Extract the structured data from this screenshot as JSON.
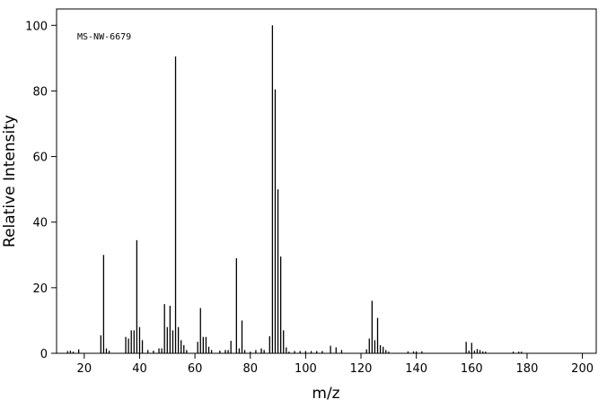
{
  "chart_data": {
    "type": "stem",
    "annotation": "MS-NW-6679",
    "x_label": "m/z",
    "y_label": "Relative Intensity",
    "x": [
      14,
      15,
      16,
      18,
      26,
      27,
      28,
      29,
      35,
      36,
      37,
      38,
      39,
      40,
      41,
      43,
      45,
      47,
      48,
      49,
      50,
      51,
      52,
      53,
      54,
      55,
      56,
      57,
      61,
      62,
      63,
      64,
      65,
      66,
      69,
      71,
      72,
      73,
      75,
      76,
      77,
      78,
      80,
      82,
      84,
      85,
      87,
      88,
      89,
      90,
      91,
      92,
      93,
      94,
      96,
      98,
      100,
      102,
      104,
      106,
      109,
      111,
      113,
      122,
      123,
      124,
      125,
      126,
      127,
      128,
      129,
      130,
      137,
      139,
      140,
      142,
      158,
      159,
      160,
      161,
      162,
      163,
      164,
      165,
      175,
      177,
      178
    ],
    "values": [
      0.7,
      0.8,
      0.5,
      1.2,
      5.5,
      30,
      1.5,
      0.8,
      5,
      4.5,
      7,
      7,
      34.5,
      8,
      4,
      1,
      0.8,
      1.5,
      1.5,
      15,
      8,
      14.5,
      7,
      90.5,
      8,
      4,
      2.5,
      1,
      3.5,
      13.8,
      5,
      5,
      2,
      1,
      0.8,
      1,
      1,
      3.8,
      29,
      1.5,
      10,
      1,
      0.5,
      1,
      1.5,
      1,
      5.2,
      100,
      80.5,
      50,
      29.5,
      7,
      1.8,
      0.5,
      0.7,
      0.7,
      0.7,
      0.7,
      0.7,
      0.7,
      2.3,
      1.8,
      1,
      1.2,
      4.5,
      16,
      4,
      10.8,
      2.5,
      2,
      1,
      0.5,
      0.6,
      0.6,
      0.6,
      0.6,
      3.5,
      0.8,
      3.2,
      0.8,
      1.3,
      1,
      0.6,
      0.5,
      0.5,
      0.5,
      0.5
    ],
    "color": "#000000",
    "xlim": [
      10,
      205
    ],
    "xticks": [
      20,
      40,
      60,
      80,
      100,
      120,
      140,
      160,
      180,
      200
    ],
    "ylim": [
      0,
      105
    ],
    "yticks": [
      0,
      20,
      40,
      60,
      80,
      100
    ]
  }
}
